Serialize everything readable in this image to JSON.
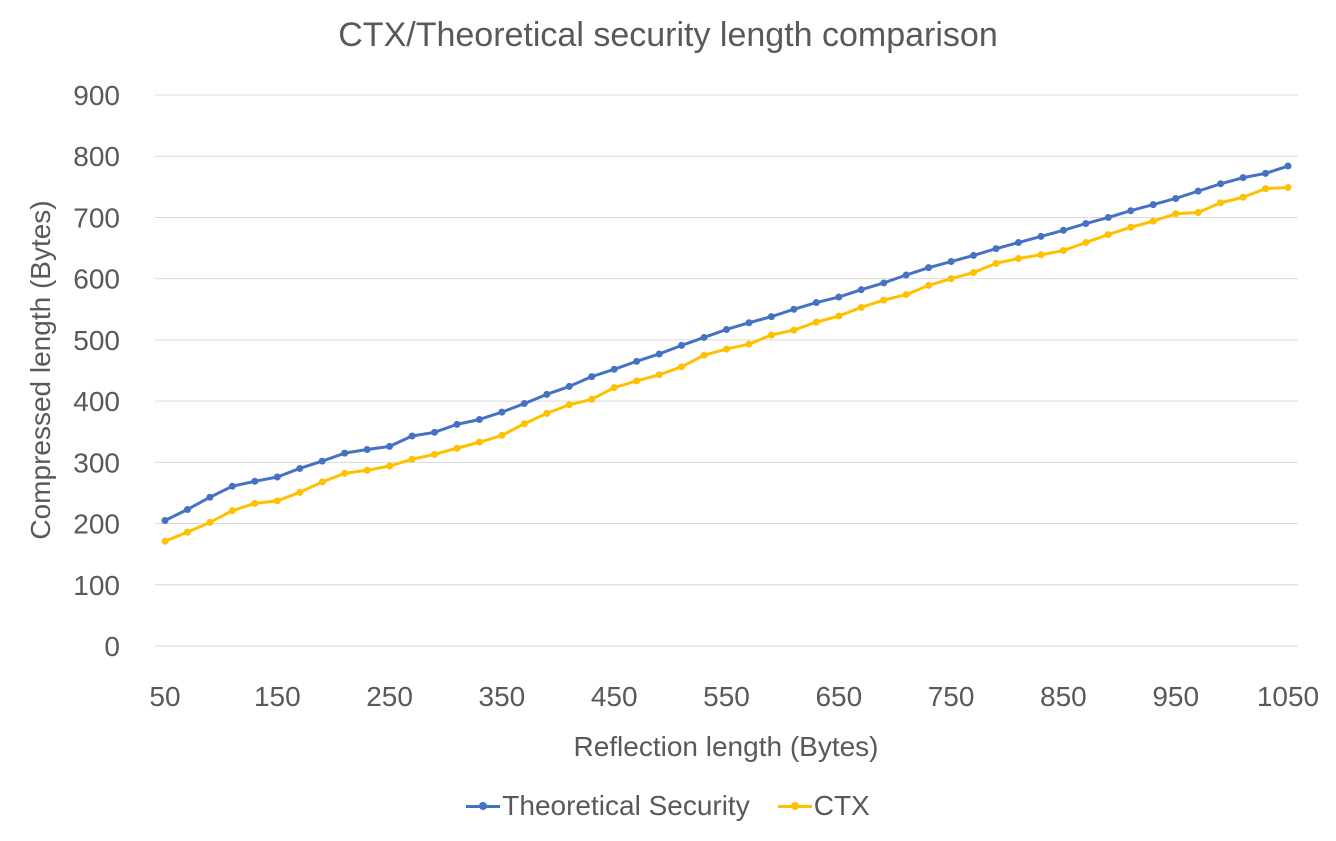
{
  "chart_data": {
    "type": "line",
    "title": "CTX/Theoretical security length comparison",
    "xlabel": "Reflection length (Bytes)",
    "ylabel": "Compressed length (Bytes)",
    "xlim": [
      50,
      1050
    ],
    "ylim": [
      0,
      900
    ],
    "x_ticks": [
      50,
      150,
      250,
      350,
      450,
      550,
      650,
      750,
      850,
      950,
      1050
    ],
    "y_ticks": [
      0,
      100,
      200,
      300,
      400,
      500,
      600,
      700,
      800,
      900
    ],
    "grid": "horizontal",
    "legend_position": "bottom",
    "x": [
      50,
      70,
      90,
      110,
      130,
      150,
      170,
      190,
      210,
      230,
      250,
      270,
      290,
      310,
      330,
      350,
      370,
      390,
      410,
      430,
      450,
      470,
      490,
      510,
      530,
      550,
      570,
      590,
      610,
      630,
      650,
      670,
      690,
      710,
      730,
      750,
      770,
      790,
      810,
      830,
      850,
      870,
      890,
      910,
      930,
      950,
      970,
      990,
      1010,
      1030,
      1050
    ],
    "series": [
      {
        "name": "Theoretical Security",
        "color": "#4472C4",
        "values": [
          205,
          223,
          243,
          261,
          269,
          276,
          290,
          302,
          315,
          321,
          326,
          343,
          349,
          362,
          370,
          382,
          396,
          411,
          424,
          440,
          452,
          465,
          477,
          491,
          504,
          517,
          528,
          538,
          550,
          561,
          570,
          582,
          593,
          606,
          618,
          628,
          638,
          649,
          659,
          669,
          679,
          690,
          700,
          711,
          721,
          731,
          743,
          755,
          765,
          772,
          784
        ]
      },
      {
        "name": "CTX",
        "color": "#FFC000",
        "values": [
          171,
          186,
          202,
          221,
          233,
          237,
          251,
          268,
          282,
          287,
          294,
          305,
          313,
          323,
          333,
          344,
          363,
          380,
          394,
          403,
          422,
          433,
          443,
          456,
          475,
          485,
          493,
          508,
          516,
          529,
          539,
          553,
          565,
          574,
          589,
          600,
          610,
          625,
          633,
          639,
          646,
          659,
          672,
          684,
          694,
          706,
          708,
          724,
          733,
          747,
          749
        ]
      }
    ]
  }
}
